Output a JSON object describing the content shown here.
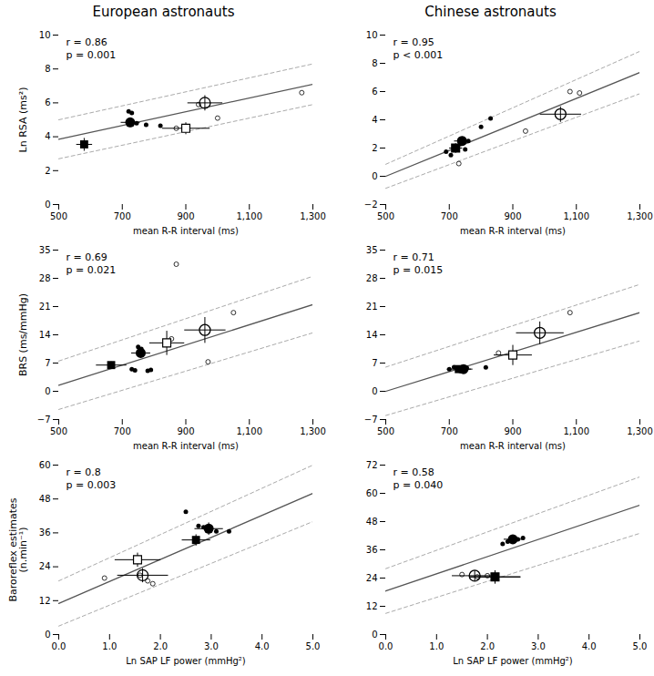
{
  "chart_data": [
    {
      "type": "scatter",
      "title": "European astronauts",
      "xlabel": "mean R-R interval (ms)",
      "ylabel": "Ln RSA (ms²)",
      "xlim": [
        500,
        1300
      ],
      "ylim": [
        0,
        10
      ],
      "xticks": [
        500,
        700,
        900,
        1100,
        1300
      ],
      "yticks": [
        0,
        2,
        4,
        6,
        8,
        10
      ],
      "annotations": [
        "r = 0.86",
        "p = 0.001"
      ],
      "series": [
        {
          "type": "line",
          "color": "#555555",
          "line_style": "solid",
          "x": [
            500,
            1300
          ],
          "values": [
            3.85,
            7.1
          ]
        },
        {
          "type": "line",
          "color": "#aaaaaa",
          "line_style": "dashed",
          "x": [
            500,
            1300
          ],
          "values": [
            5.0,
            8.3
          ]
        },
        {
          "type": "line",
          "color": "#aaaaaa",
          "line_style": "dashed",
          "x": [
            500,
            1300
          ],
          "values": [
            2.7,
            5.9
          ]
        },
        {
          "type": "scatter",
          "marker": "point",
          "color": "black",
          "x": [
            720,
            730,
            745,
            775,
            820
          ],
          "values": [
            5.5,
            5.4,
            4.8,
            4.7,
            4.65
          ]
        },
        {
          "type": "scatter",
          "marker": "circle",
          "color": "black",
          "x": [
            725
          ],
          "values": [
            4.85
          ],
          "x_err": [
            30
          ],
          "y_err": [
            0.28
          ]
        },
        {
          "type": "scatter",
          "marker": "point_open",
          "color": "black",
          "x": [
            870,
            940,
            1000,
            1265
          ],
          "values": [
            4.5,
            5.9,
            5.1,
            6.6
          ]
        },
        {
          "type": "scatter",
          "marker": "circle_open",
          "color": "black",
          "x": [
            960
          ],
          "values": [
            6.0
          ],
          "x_err": [
            55
          ],
          "y_err": [
            0.45
          ]
        },
        {
          "type": "scatter",
          "marker": "square_open",
          "color": "black",
          "x": [
            900
          ],
          "values": [
            4.5
          ],
          "x_err": [
            75
          ],
          "y_err": [
            0.35
          ]
        },
        {
          "type": "scatter",
          "marker": "square",
          "color": "black",
          "x": [
            580
          ],
          "values": [
            3.55
          ],
          "x_err": [
            25
          ],
          "y_err": [
            0.38
          ]
        }
      ]
    },
    {
      "type": "scatter",
      "title": "Chinese astronauts",
      "xlabel": "mean R-R interval (ms)",
      "xlim": [
        500,
        1300
      ],
      "ylim": [
        -2,
        10
      ],
      "xticks": [
        500,
        700,
        900,
        1100,
        1300
      ],
      "yticks": [
        -2,
        0,
        2,
        4,
        6,
        8,
        10
      ],
      "annotations": [
        "r = 0.95",
        "p < 0.001"
      ],
      "series": [
        {
          "type": "line",
          "color": "#555555",
          "line_style": "solid",
          "x": [
            500,
            1300
          ],
          "values": [
            0.0,
            7.35
          ]
        },
        {
          "type": "line",
          "color": "#aaaaaa",
          "line_style": "dashed",
          "x": [
            500,
            1300
          ],
          "values": [
            0.85,
            8.85
          ]
        },
        {
          "type": "line",
          "color": "#aaaaaa",
          "line_style": "dashed",
          "x": [
            500,
            1300
          ],
          "values": [
            -0.85,
            5.85
          ]
        },
        {
          "type": "scatter",
          "marker": "point",
          "color": "black",
          "x": [
            690,
            705,
            720,
            750,
            760,
            800,
            830
          ],
          "values": [
            1.75,
            1.5,
            2.0,
            1.9,
            2.5,
            3.5,
            4.1
          ]
        },
        {
          "type": "scatter",
          "marker": "circle",
          "color": "black",
          "x": [
            740
          ],
          "values": [
            2.5
          ],
          "x_err": [
            25
          ],
          "y_err": [
            0.28
          ]
        },
        {
          "type": "scatter",
          "marker": "point_open",
          "color": "black",
          "x": [
            730,
            940,
            1080,
            1110
          ],
          "values": [
            0.9,
            3.2,
            6.0,
            5.9
          ]
        },
        {
          "type": "scatter",
          "marker": "circle_open",
          "color": "black",
          "x": [
            1050
          ],
          "values": [
            4.4
          ],
          "x_err": [
            65
          ],
          "y_err": [
            0.55
          ]
        },
        {
          "type": "scatter",
          "marker": "square_open",
          "color": "black",
          "x": [
            720
          ],
          "values": [
            2.0
          ],
          "x_err": [
            20
          ],
          "y_err": [
            0.32
          ]
        },
        {
          "type": "scatter",
          "marker": "square",
          "color": "black",
          "x": [
            720
          ],
          "values": [
            2.0
          ],
          "x_err": [
            20
          ],
          "y_err": [
            0.32
          ]
        }
      ]
    },
    {
      "type": "scatter",
      "xlabel": "mean R-R interval (ms)",
      "ylabel": "BRS (ms/mmHg)",
      "xlim": [
        500,
        1300
      ],
      "ylim": [
        -7,
        35
      ],
      "xticks": [
        500,
        700,
        900,
        1100,
        1300
      ],
      "yticks": [
        -7,
        0,
        7,
        14,
        21,
        28,
        35
      ],
      "annotations": [
        "r = 0.69",
        "p = 0.021"
      ],
      "series": [
        {
          "type": "line",
          "color": "#555555",
          "line_style": "solid",
          "x": [
            500,
            1300
          ],
          "values": [
            1.5,
            21.5
          ]
        },
        {
          "type": "line",
          "color": "#aaaaaa",
          "line_style": "dashed",
          "x": [
            500,
            1300
          ],
          "values": [
            7.5,
            28.5
          ]
        },
        {
          "type": "line",
          "color": "#aaaaaa",
          "line_style": "dashed",
          "x": [
            500,
            1300
          ],
          "values": [
            -4.5,
            14.5
          ]
        },
        {
          "type": "scatter",
          "marker": "point",
          "color": "black",
          "x": [
            730,
            740,
            750,
            760,
            780,
            790
          ],
          "values": [
            5.5,
            5.2,
            11.0,
            10.5,
            5.1,
            5.3
          ]
        },
        {
          "type": "scatter",
          "marker": "circle",
          "color": "black",
          "x": [
            758
          ],
          "values": [
            9.5
          ],
          "x_err": [
            30
          ],
          "y_err": [
            0.75
          ]
        },
        {
          "type": "scatter",
          "marker": "point_open",
          "color": "black",
          "x": [
            855,
            970,
            1050,
            870
          ],
          "values": [
            13.0,
            7.3,
            19.5,
            31.5
          ]
        },
        {
          "type": "scatter",
          "marker": "circle_open",
          "color": "black",
          "x": [
            960
          ],
          "values": [
            15.2
          ],
          "x_err": [
            65
          ],
          "y_err": [
            3.2
          ]
        },
        {
          "type": "scatter",
          "marker": "square_open",
          "color": "black",
          "x": [
            840
          ],
          "values": [
            12.0
          ],
          "x_err": [
            55
          ],
          "y_err": [
            3.0
          ]
        },
        {
          "type": "scatter",
          "marker": "square",
          "color": "black",
          "x": [
            665
          ],
          "values": [
            6.5
          ],
          "x_err": [
            48
          ],
          "y_err": [
            0.9
          ]
        }
      ]
    },
    {
      "type": "scatter",
      "xlabel": "mean R-R interval (ms)",
      "xlim": [
        500,
        1300
      ],
      "ylim": [
        -7,
        35
      ],
      "xticks": [
        500,
        700,
        900,
        1100,
        1300
      ],
      "yticks": [
        -7,
        0,
        7,
        14,
        21,
        28,
        35
      ],
      "annotations": [
        "r = 0.71",
        "p = 0.015"
      ],
      "series": [
        {
          "type": "line",
          "color": "#555555",
          "line_style": "solid",
          "x": [
            500,
            1300
          ],
          "values": [
            0.0,
            19.5
          ]
        },
        {
          "type": "line",
          "color": "#aaaaaa",
          "line_style": "dashed",
          "x": [
            500,
            1300
          ],
          "values": [
            6.0,
            26.5
          ]
        },
        {
          "type": "line",
          "color": "#aaaaaa",
          "line_style": "dashed",
          "x": [
            500,
            1300
          ],
          "values": [
            -6.0,
            12.5
          ]
        },
        {
          "type": "scatter",
          "marker": "point",
          "color": "black",
          "x": [
            700,
            715,
            735,
            755,
            815
          ],
          "values": [
            5.5,
            6.0,
            5.0,
            5.8,
            5.9
          ]
        },
        {
          "type": "scatter",
          "marker": "circle",
          "color": "black",
          "x": [
            745
          ],
          "values": [
            5.5
          ],
          "x_err": [
            28
          ],
          "y_err": [
            0.55
          ]
        },
        {
          "type": "scatter",
          "marker": "point_open",
          "color": "black",
          "x": [
            855,
            1080
          ],
          "values": [
            9.5,
            19.5
          ]
        },
        {
          "type": "scatter",
          "marker": "circle_open",
          "color": "black",
          "x": [
            985
          ],
          "values": [
            14.5
          ],
          "x_err": [
            75
          ],
          "y_err": [
            2.8
          ]
        },
        {
          "type": "scatter",
          "marker": "square_open",
          "color": "black",
          "x": [
            900
          ],
          "values": [
            9.0
          ],
          "x_err": [
            60
          ],
          "y_err": [
            2.5
          ]
        },
        {
          "type": "scatter",
          "marker": "square",
          "color": "black",
          "x": [
            730
          ],
          "values": [
            5.5
          ],
          "x_err": [
            38
          ],
          "y_err": [
            0.75
          ]
        }
      ]
    },
    {
      "type": "scatter",
      "xlabel": "Ln SAP LF power (mmHg²)",
      "ylabel": "Baroreflex estimates\n(n.min⁻¹)",
      "xlim": [
        0,
        5
      ],
      "ylim": [
        0,
        60
      ],
      "xticks": [
        0,
        1,
        2,
        3,
        4,
        5
      ],
      "yticks": [
        0,
        12,
        24,
        36,
        48,
        60
      ],
      "annotations": [
        "r = 0.8",
        "p = 0.003"
      ],
      "series": [
        {
          "type": "line",
          "color": "#555555",
          "line_style": "solid",
          "x": [
            0,
            5
          ],
          "values": [
            11.0,
            50.0
          ]
        },
        {
          "type": "line",
          "color": "#aaaaaa",
          "line_style": "dashed",
          "x": [
            0,
            5
          ],
          "values": [
            19.0,
            60.0
          ]
        },
        {
          "type": "line",
          "color": "#aaaaaa",
          "line_style": "dashed",
          "x": [
            0,
            5
          ],
          "values": [
            3.0,
            40.0
          ]
        },
        {
          "type": "scatter",
          "marker": "point",
          "color": "black",
          "x": [
            2.5,
            2.75,
            2.85,
            3.1,
            3.35
          ],
          "values": [
            43.5,
            38.5,
            38.0,
            36.5,
            36.5
          ]
        },
        {
          "type": "scatter",
          "marker": "circle",
          "color": "black",
          "x": [
            2.95
          ],
          "values": [
            37.5
          ],
          "x_err": [
            0.28
          ],
          "y_err": [
            2.2
          ]
        },
        {
          "type": "scatter",
          "marker": "point_open",
          "color": "black",
          "x": [
            0.9,
            1.6,
            1.75,
            1.85
          ],
          "values": [
            20.0,
            21.0,
            19.0,
            18.0
          ]
        },
        {
          "type": "scatter",
          "marker": "circle_open",
          "color": "black",
          "x": [
            1.65
          ],
          "values": [
            21.0
          ],
          "x_err": [
            0.5
          ],
          "y_err": [
            2.5
          ]
        },
        {
          "type": "scatter",
          "marker": "square_open",
          "color": "black",
          "x": [
            1.55
          ],
          "values": [
            26.5
          ],
          "x_err": [
            0.45
          ],
          "y_err": [
            2.5
          ]
        },
        {
          "type": "scatter",
          "marker": "square",
          "color": "black",
          "x": [
            2.7
          ],
          "values": [
            33.5
          ],
          "x_err": [
            0.28
          ],
          "y_err": [
            2.0
          ]
        }
      ]
    },
    {
      "type": "scatter",
      "xlabel": "Ln SAP LF power (mmHg²)",
      "xlim": [
        0,
        5
      ],
      "ylim": [
        0,
        72
      ],
      "xticks": [
        0,
        1,
        2,
        3,
        4,
        5
      ],
      "yticks": [
        0,
        12,
        24,
        36,
        48,
        60,
        72
      ],
      "annotations": [
        "r = 0.58",
        "p = 0.040"
      ],
      "series": [
        {
          "type": "line",
          "color": "#555555",
          "line_style": "solid",
          "x": [
            0,
            5
          ],
          "values": [
            18.5,
            55.0
          ]
        },
        {
          "type": "line",
          "color": "#aaaaaa",
          "line_style": "dashed",
          "x": [
            0,
            5
          ],
          "values": [
            28.0,
            67.0
          ]
        },
        {
          "type": "line",
          "color": "#aaaaaa",
          "line_style": "dashed",
          "x": [
            0,
            5
          ],
          "values": [
            9.0,
            43.0
          ]
        },
        {
          "type": "scatter",
          "marker": "point",
          "color": "black",
          "x": [
            2.3,
            2.4,
            2.5,
            2.6,
            2.7
          ],
          "values": [
            38.5,
            39.5,
            41.0,
            40.5,
            41.0
          ]
        },
        {
          "type": "scatter",
          "marker": "circle",
          "color": "black",
          "x": [
            2.5
          ],
          "values": [
            40.5
          ],
          "x_err": [
            0.18
          ],
          "y_err": [
            1.8
          ]
        },
        {
          "type": "scatter",
          "marker": "point_open",
          "color": "black",
          "x": [
            1.5,
            1.8,
            2.0
          ],
          "values": [
            25.5,
            24.5,
            25.0
          ]
        },
        {
          "type": "scatter",
          "marker": "circle_open",
          "color": "black",
          "x": [
            1.75
          ],
          "values": [
            25.0
          ],
          "x_err": [
            0.45
          ],
          "y_err": [
            2.3
          ]
        },
        {
          "type": "scatter",
          "marker": "square_open",
          "color": "black",
          "x": [
            2.15
          ],
          "values": [
            24.5
          ],
          "x_err": [
            0.5
          ],
          "y_err": [
            2.8
          ]
        },
        {
          "type": "scatter",
          "marker": "square",
          "color": "black",
          "x": [
            2.15
          ],
          "values": [
            24.5
          ],
          "x_err": [
            0.5
          ],
          "y_err": [
            2.8
          ]
        }
      ]
    }
  ]
}
